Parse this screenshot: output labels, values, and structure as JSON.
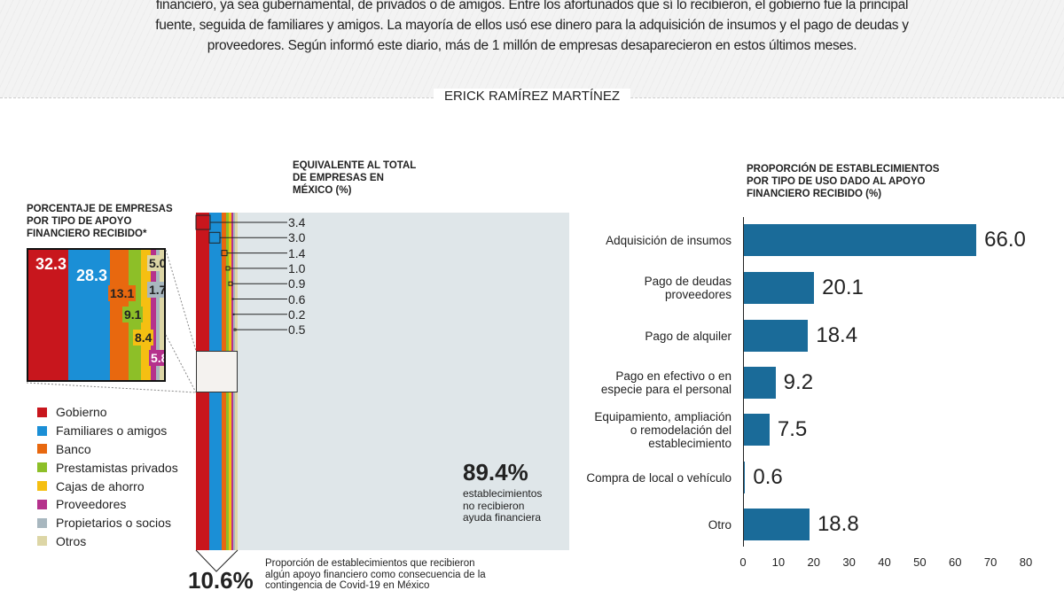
{
  "intro": {
    "lines": [
      "financiero, ya sea gubernamental, de privados o de amigos. Entre los afortunados que sí lo recibieron, el gobierno fue la principal",
      "fuente, seguida de familiares y amigos. La mayoría de ellos usó ese dinero para la adquisición de insumos y el pago de deudas y",
      "proveedores. Según informó este diario, más de 1 millón de empresas desaparecieron en estos últimos meses."
    ],
    "byline": "ERICK RAMÍREZ MARTÍNEZ"
  },
  "colors": {
    "Gobierno": "#c8161d",
    "Familiares o amigos": "#1b8fd6",
    "Banco": "#e8680f",
    "Prestamistas privados": "#8dbf28",
    "Cajas de ahorro": "#f5bf12",
    "Proveedores": "#b5318c",
    "Propietarios o socios": "#a8b7bf",
    "Otros": "#ddd6a6",
    "bars": "#1a6b99"
  },
  "chart_data": [
    {
      "type": "bar",
      "title": "PORCENTAJE DE EMPRESAS POR TIPO DE APOYO FINANCIERO RECIBIDO*",
      "categories": [
        "Gobierno",
        "Familiares o amigos",
        "Banco",
        "Prestamistas privados",
        "Cajas de ahorro",
        "Proveedores",
        "Propietarios o socios",
        "Otros"
      ],
      "values": [
        32.3,
        28.3,
        13.1,
        9.1,
        8.4,
        5.8,
        1.7,
        5.0
      ],
      "value_labels": [
        "32.3",
        "28.3",
        "13.1",
        "9.1",
        "8.4",
        "5.8",
        "1.7",
        "5.0"
      ],
      "legend": "bottom-left"
    },
    {
      "type": "bar",
      "title": "EQUIVALENTE AL TOTAL DE EMPRESAS EN MÉXICO (%)",
      "categories": [
        "Gobierno",
        "Familiares o amigos",
        "Banco",
        "Prestamistas privados",
        "Cajas de ahorro",
        "Proveedores",
        "Propietarios o socios",
        "Otros"
      ],
      "values": [
        3.4,
        3.0,
        1.4,
        1.0,
        0.9,
        0.6,
        0.2,
        0.5
      ],
      "value_labels": [
        "3.4",
        "3.0",
        "1.4",
        "1.0",
        "0.9",
        "0.6",
        "0.2",
        "0.5"
      ],
      "received": {
        "value": "10.6%",
        "text": [
          "Proporción de establecimientos que recibieron",
          "algún apoyo financiero como consecuencia de la",
          "contingencia de Covid-19 en México"
        ]
      },
      "not_received": {
        "value": "89.4%",
        "text": [
          "establecimientos",
          "no recibieron",
          "ayuda financiera"
        ]
      }
    },
    {
      "type": "bar",
      "orientation": "horizontal",
      "title": "PROPORCIÓN DE ESTABLECIMIENTOS POR TIPO DE USO DADO AL APOYO FINANCIERO RECIBIDO (%)",
      "categories": [
        [
          "Adquisición de insumos"
        ],
        [
          "Pago de deudas",
          "proveedores"
        ],
        [
          "Pago de alquiler"
        ],
        [
          "Pago en efectivo o en",
          "especie para el personal"
        ],
        [
          "Equipamiento, ampliación",
          "o remodelación del",
          "establecimiento"
        ],
        [
          "Compra de local o vehículo"
        ],
        [
          "Otro"
        ]
      ],
      "values": [
        66.0,
        20.1,
        18.4,
        9.2,
        7.5,
        0.6,
        18.8
      ],
      "value_labels": [
        "66.0",
        "20.1",
        "18.4",
        "9.2",
        "7.5",
        "0.6",
        "18.8"
      ],
      "xlim": [
        0,
        80
      ],
      "xticks": [
        "0",
        "10",
        "20",
        "30",
        "40",
        "50",
        "60",
        "70",
        "80"
      ],
      "grid": false
    }
  ]
}
